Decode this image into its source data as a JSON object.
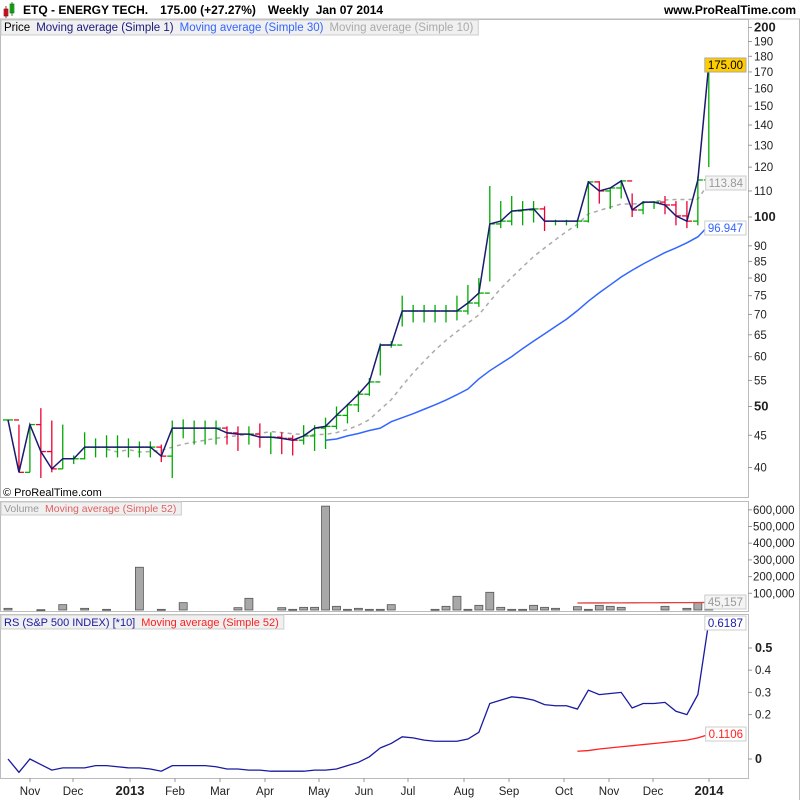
{
  "header": {
    "symbol_title": "ETQ - ENERGY TECH.",
    "price_change": "175.00 (+27.27%)",
    "period_date": "Weekly  Jan 07 2014",
    "site": "www.ProRealTime.com",
    "copyright": "© ProRealTime.com",
    "logo_icon": "candlestick-icon"
  },
  "price_panel": {
    "legend": [
      "Price",
      "Moving average (Simple 1)",
      "Moving average (Simple 30)",
      "Moving average (Simple 10)"
    ],
    "legend_colors": [
      "#000000",
      "#1a1a80",
      "#3366ff",
      "#aaaaaa"
    ],
    "last_price_label": "175.00",
    "ma10_label": "113.84",
    "ma30_label": "96.947",
    "y_ticks": [
      "200",
      "190",
      "180",
      "170",
      "160",
      "150",
      "140",
      "130",
      "120",
      "110",
      "100",
      "90",
      "85",
      "80",
      "75",
      "70",
      "65",
      "60",
      "55",
      "50",
      "45",
      "40"
    ],
    "bold_ticks": [
      "200",
      "100",
      "50"
    ]
  },
  "volume_panel": {
    "legend": [
      "Volume",
      "Moving average (Simple 52)"
    ],
    "ma_label": "45,157",
    "y_ticks": [
      "600,000",
      "500,000",
      "400,000",
      "300,000",
      "200,000",
      "100,000"
    ]
  },
  "rs_panel": {
    "legend": [
      "RS (S&P 500 INDEX) [*10]",
      "Moving average (Simple 52)"
    ],
    "rs_label": "0.6187",
    "ma_label": "0.1106",
    "y_ticks": [
      "0.5",
      "0.4",
      "0.3",
      "0.2",
      "0"
    ]
  },
  "x_axis": {
    "labels": [
      "Nov",
      "Dec",
      "2013",
      "Feb",
      "Mar",
      "Apr",
      "May",
      "Jun",
      "Jul",
      "Aug",
      "Sep",
      "Oct",
      "Nov",
      "Dec",
      "2014"
    ]
  },
  "colors": {
    "up": "#00aa00",
    "down": "#ee0033",
    "ma1": "#1a1a70",
    "ma30": "#3366ff",
    "ma10": "#aaaaaa",
    "rs": "#1a1aa0",
    "rs_ma": "#ff2020",
    "last_price_bg": "#ffcc00"
  },
  "chart_data": [
    {
      "type": "ohlc-line",
      "title": "ETQ - ENERGY TECH.",
      "y_scale": "log",
      "ylim": [
        36,
        205
      ],
      "close": [
        47.6,
        39.3,
        46.8,
        42.4,
        39.8,
        41.3,
        41.3,
        43.1,
        43.1,
        43.1,
        43.1,
        43.1,
        43.1,
        43.1,
        41.7,
        46.2,
        46.2,
        46.2,
        46.2,
        46.2,
        45.4,
        45.2,
        45.2,
        44.7,
        44.7,
        44.5,
        44.2,
        44.9,
        46.2,
        46.5,
        48.4,
        50.3,
        52.3,
        54.7,
        62.6,
        62.6,
        70.9,
        70.9,
        70.9,
        70.9,
        70.9,
        70.9,
        73.0,
        75.7,
        97.5,
        98.5,
        102.2,
        102.6,
        103.0,
        98.5,
        98.5,
        98.5,
        98.5,
        113.7,
        110.0,
        111.2,
        114.1,
        102.6,
        105.6,
        105.6,
        104.5,
        100.4,
        98.5,
        114.5,
        175.0
      ],
      "high": [
        47.6,
        46.8,
        46.8,
        49.7,
        47.5,
        46.8,
        41.8,
        45.5,
        44.5,
        45.0,
        45.0,
        44.5,
        44.0,
        44.0,
        43.5,
        47.5,
        47.7,
        47.5,
        47.5,
        47.5,
        46.5,
        46.5,
        46.5,
        47.0,
        45.5,
        45.5,
        45.0,
        46.7,
        46.7,
        48.0,
        50.0,
        50.5,
        53.0,
        55.5,
        63.0,
        63.5,
        75.0,
        72.5,
        72.5,
        72.5,
        72.5,
        75.0,
        78.0,
        80.0,
        112.0,
        106.0,
        108.0,
        106.0,
        106.0,
        104.0,
        99.0,
        99.0,
        99.0,
        114.0,
        114.0,
        111.0,
        114.5,
        109.0,
        106.0,
        106.0,
        108.0,
        106.0,
        106.0,
        116.0,
        175.0
      ],
      "low": [
        47.6,
        39.3,
        39.3,
        38.5,
        39.3,
        39.8,
        40.5,
        41.2,
        41.5,
        41.5,
        41.5,
        41.5,
        41.5,
        41.5,
        40.8,
        38.5,
        44.5,
        43.5,
        43.5,
        43.5,
        43.5,
        42.5,
        43.5,
        43.0,
        42.0,
        42.0,
        41.8,
        43.5,
        42.5,
        42.8,
        46.0,
        47.0,
        49.0,
        52.0,
        56.0,
        62.0,
        67.0,
        68.0,
        68.0,
        68.0,
        68.0,
        68.5,
        70.0,
        72.0,
        79.0,
        96.0,
        97.0,
        97.0,
        98.0,
        95.0,
        97.0,
        97.0,
        96.0,
        98.0,
        105.0,
        103.0,
        107.0,
        100.0,
        101.0,
        103.0,
        101.0,
        97.0,
        96.0,
        97.0,
        120.0
      ],
      "ma30_start_index": 29,
      "ma30": [
        44.2,
        44.4,
        44.9,
        45.3,
        45.8,
        46.2,
        47.3,
        48.0,
        48.7,
        49.5,
        50.3,
        51.2,
        52.2,
        53.3,
        55.3,
        57.0,
        58.5,
        60.0,
        61.8,
        63.5,
        65.2,
        67.0,
        68.8,
        71.0,
        73.5,
        75.8,
        78.0,
        80.3,
        82.3,
        84.2,
        86.0,
        87.8,
        89.3,
        91.0,
        93.0,
        96.947
      ]
    },
    {
      "type": "bar",
      "ylim": [
        0,
        650000
      ],
      "values": [
        10000,
        0,
        0,
        2000,
        0,
        32000,
        0,
        10000,
        0,
        4000,
        0,
        0,
        256000,
        0,
        4000,
        0,
        44000,
        0,
        0,
        0,
        0,
        14000,
        70000,
        0,
        0,
        14000,
        4000,
        16000,
        16000,
        622000,
        22000,
        4000,
        10000,
        4000,
        4000,
        32000,
        0,
        0,
        0,
        4000,
        22000,
        82000,
        4000,
        28000,
        106000,
        16000,
        4000,
        4000,
        28000,
        16000,
        10000,
        0,
        20000,
        4000,
        28000,
        22000,
        16000,
        0,
        0,
        0,
        22000,
        0,
        10000,
        44000,
        40000
      ],
      "ma52_start_index": 52,
      "ma52": [
        42000,
        42200,
        42400,
        42600,
        42800,
        43000,
        43200,
        43400,
        43700,
        44000,
        44300,
        44700,
        45157
      ]
    },
    {
      "type": "line",
      "ylim": [
        -0.1,
        0.67
      ],
      "rs": [
        0.0,
        -0.06,
        0.0,
        -0.025,
        -0.05,
        -0.04,
        -0.04,
        -0.04,
        -0.03,
        -0.03,
        -0.035,
        -0.04,
        -0.04,
        -0.045,
        -0.055,
        -0.03,
        -0.03,
        -0.03,
        -0.03,
        -0.035,
        -0.045,
        -0.045,
        -0.05,
        -0.05,
        -0.055,
        -0.055,
        -0.055,
        -0.055,
        -0.05,
        -0.05,
        -0.045,
        -0.03,
        -0.015,
        0.01,
        0.05,
        0.07,
        0.1,
        0.095,
        0.085,
        0.08,
        0.08,
        0.08,
        0.09,
        0.12,
        0.25,
        0.265,
        0.28,
        0.275,
        0.265,
        0.245,
        0.24,
        0.24,
        0.225,
        0.31,
        0.29,
        0.295,
        0.3,
        0.23,
        0.25,
        0.25,
        0.255,
        0.215,
        0.2,
        0.29,
        0.6187
      ],
      "ma52_start_index": 52,
      "ma52": [
        0.035,
        0.038,
        0.045,
        0.05,
        0.055,
        0.06,
        0.065,
        0.07,
        0.075,
        0.08,
        0.085,
        0.095,
        0.1106
      ]
    }
  ]
}
